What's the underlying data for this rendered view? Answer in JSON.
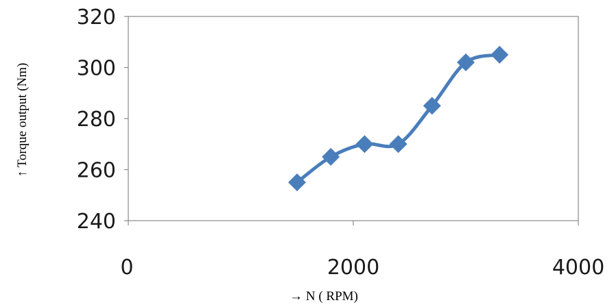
{
  "chart_data": {
    "type": "line",
    "title": "",
    "xlabel": "→  N ( RPM)",
    "ylabel": "↑ Torque  output (Nm)",
    "xlim": [
      0,
      4000
    ],
    "ylim": [
      240,
      320
    ],
    "x_ticks": [
      0,
      2000,
      4000
    ],
    "y_ticks": [
      240,
      260,
      280,
      300,
      320
    ],
    "x_tick_labels": [
      "0",
      "2000",
      "4000"
    ],
    "y_tick_labels": [
      "240",
      "260",
      "280",
      "300",
      "320"
    ],
    "grid": false,
    "legend": "none",
    "marker": "diamond",
    "line_color": "#4a7ebb",
    "series": [
      {
        "x": [
          1500,
          1800,
          2100,
          2400,
          2700,
          3000,
          3300
        ],
        "y": [
          255,
          265,
          270,
          270,
          285,
          302,
          305
        ]
      }
    ]
  }
}
